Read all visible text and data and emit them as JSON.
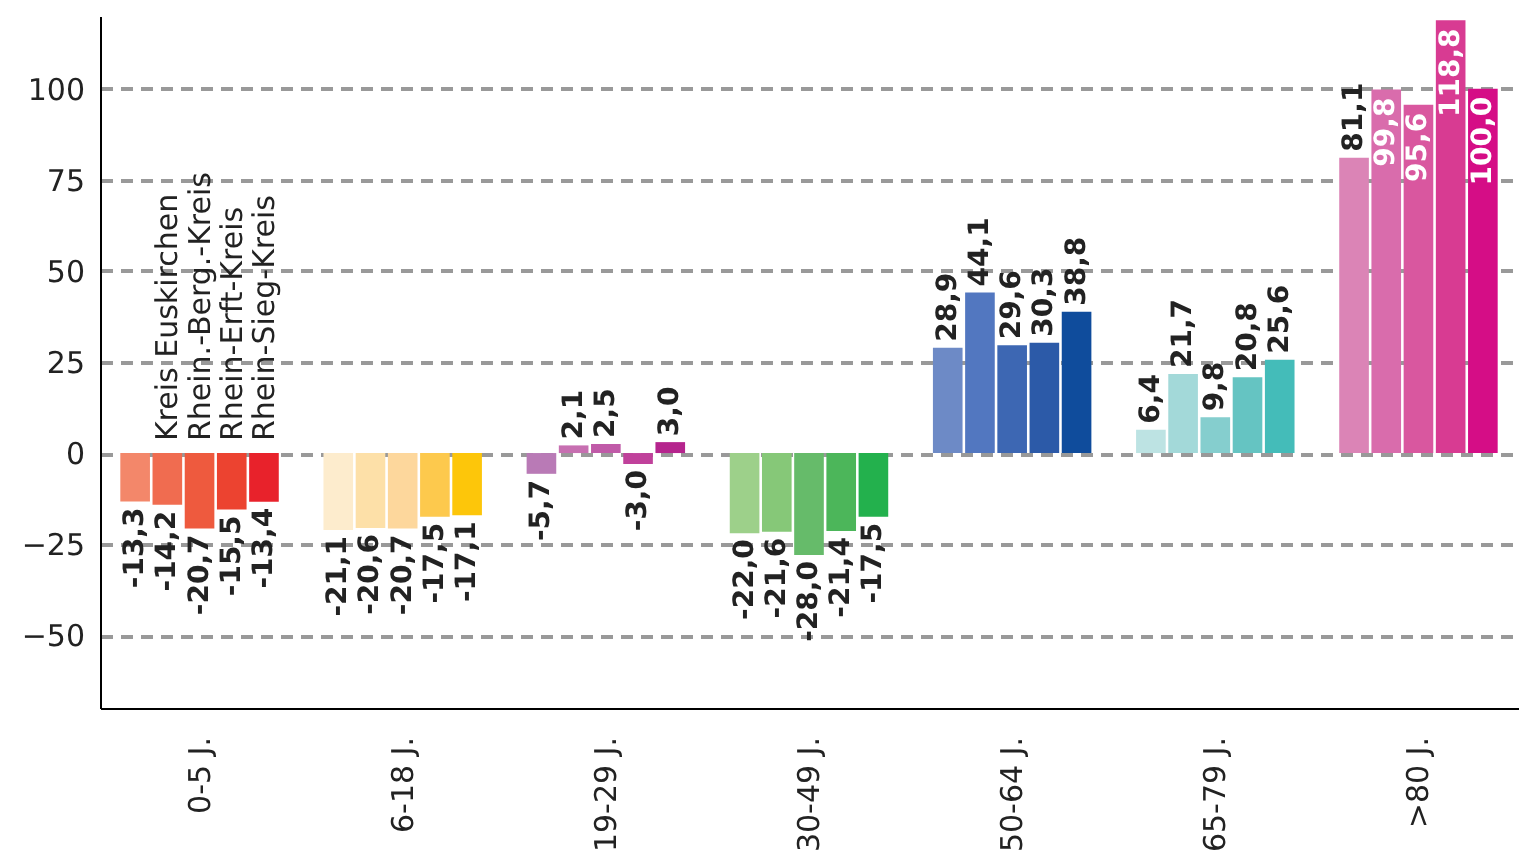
{
  "chart_data": {
    "type": "bar",
    "categories": [
      "0-5 J.",
      "6-18 J.",
      "19-29 J.",
      "30-49 J.",
      "50-64 J.",
      "65-79 J.",
      ">80 J."
    ],
    "series": [
      {
        "colors": [
          "#f3876a",
          "#fdeccd",
          "#b97ab6",
          "#9dd08a",
          "#6d8ac6",
          "#bde3e3",
          "#db84b6"
        ],
        "values": [
          -13.3,
          -21.1,
          -5.7,
          -22.0,
          28.9,
          6.4,
          81.1
        ],
        "value_labels": [
          "-13,3",
          "-21,1",
          "-5,7",
          "-22,0",
          "28,9",
          "6,4",
          "81,1"
        ]
      },
      {
        "name": "Kreis Euskirchen",
        "colors": [
          "#f06c50",
          "#fde0a8",
          "#c76fb1",
          "#86c878",
          "#5277c0",
          "#a3d9d9",
          "#d96cac"
        ],
        "values": [
          -14.2,
          -20.6,
          2.1,
          -21.6,
          44.1,
          21.7,
          99.8
        ],
        "value_labels": [
          "-14,2",
          "-20,6",
          "2,1",
          "-21,6",
          "44,1",
          "21,7",
          "99,8"
        ]
      },
      {
        "name": "Rhein.-Berg.-Kreis",
        "colors": [
          "#ee5a3e",
          "#fdd79c",
          "#c05aa8",
          "#66bb6a",
          "#3d67b3",
          "#85cece",
          "#d9579f"
        ],
        "values": [
          -20.7,
          -20.7,
          2.5,
          -28.0,
          29.6,
          9.8,
          95.6
        ],
        "value_labels": [
          "-20,7",
          "-20,7",
          "2,5",
          "-28,0",
          "29,6",
          "9,8",
          "95,6"
        ]
      },
      {
        "name": "Rhein-Erft-Kreis",
        "colors": [
          "#ec4330",
          "#fdc94d",
          "#c0419b",
          "#4cb65a",
          "#2c5aa8",
          "#65c4c2",
          "#d83b92"
        ],
        "values": [
          -15.5,
          -17.5,
          -3.0,
          -21.4,
          30.3,
          20.8,
          118.8
        ],
        "value_labels": [
          "-15,5",
          "-17,5",
          "-3,0",
          "-21,4",
          "30,3",
          "20,8",
          "118,8"
        ]
      },
      {
        "name": "Rhein-Sieg-Kreis",
        "colors": [
          "#e8222b",
          "#fdc60a",
          "#b5248d",
          "#23b14d",
          "#0f4c9c",
          "#44bcb9",
          "#d50d86"
        ],
        "values": [
          -13.4,
          -17.1,
          3.0,
          -17.5,
          38.8,
          25.6,
          100.0
        ],
        "value_labels": [
          "-13,4",
          "-17,1",
          "3,0",
          "-17,5",
          "38,8",
          "25,6",
          "100,0"
        ]
      }
    ],
    "ylim": [
      -70,
      120
    ],
    "yticks": [
      -50,
      -25,
      0,
      25,
      50,
      75,
      100
    ],
    "grid": "y"
  }
}
